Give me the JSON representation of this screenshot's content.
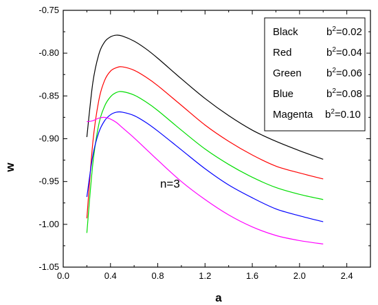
{
  "chart_data": {
    "type": "line",
    "xlabel": "a",
    "ylabel": "w",
    "xlim": [
      0.0,
      2.6
    ],
    "ylim": [
      -1.05,
      -0.75
    ],
    "xticks": [
      0.0,
      0.4,
      0.8,
      1.2,
      1.6,
      2.0,
      2.4
    ],
    "xtick_labels": [
      "0.0",
      "0.4",
      "0.8",
      "1.2",
      "1.6",
      "2.0",
      "2.4"
    ],
    "yticks": [
      -1.05,
      -1.0,
      -0.95,
      -0.9,
      -0.85,
      -0.8,
      -0.75
    ],
    "ytick_labels": [
      "-1.05",
      "-1.00",
      "-0.95",
      "-0.90",
      "-0.85",
      "-0.80",
      "-0.75"
    ],
    "grid": false,
    "legend_position": "top-right",
    "annotation": {
      "text": "n=3",
      "x": 0.82,
      "y": -0.957
    },
    "series": [
      {
        "name": "Black",
        "param": "0.02",
        "color": "#000000",
        "x": [
          0.2,
          0.25,
          0.3,
          0.35,
          0.4,
          0.45,
          0.5,
          0.6,
          0.7,
          0.8,
          1.0,
          1.2,
          1.4,
          1.6,
          1.8,
          2.0,
          2.2
        ],
        "y": [
          -0.898,
          -0.835,
          -0.802,
          -0.787,
          -0.781,
          -0.779,
          -0.78,
          -0.786,
          -0.795,
          -0.806,
          -0.83,
          -0.853,
          -0.873,
          -0.89,
          -0.903,
          -0.914,
          -0.924
        ]
      },
      {
        "name": "Red",
        "param": "0.04",
        "color": "#ff0000",
        "x": [
          0.2,
          0.25,
          0.3,
          0.35,
          0.4,
          0.45,
          0.5,
          0.6,
          0.7,
          0.8,
          1.0,
          1.2,
          1.4,
          1.6,
          1.8,
          2.0,
          2.2
        ],
        "y": [
          -0.993,
          -0.905,
          -0.856,
          -0.832,
          -0.821,
          -0.817,
          -0.816,
          -0.82,
          -0.828,
          -0.838,
          -0.861,
          -0.884,
          -0.903,
          -0.919,
          -0.932,
          -0.94,
          -0.947
        ]
      },
      {
        "name": "Green",
        "param": "0.06",
        "color": "#00dd00",
        "x": [
          0.2,
          0.25,
          0.3,
          0.35,
          0.4,
          0.45,
          0.5,
          0.6,
          0.7,
          0.8,
          1.0,
          1.2,
          1.4,
          1.6,
          1.8,
          2.0,
          2.2
        ],
        "y": [
          -1.01,
          -0.93,
          -0.884,
          -0.862,
          -0.851,
          -0.846,
          -0.845,
          -0.849,
          -0.857,
          -0.867,
          -0.89,
          -0.912,
          -0.93,
          -0.945,
          -0.957,
          -0.965,
          -0.971
        ]
      },
      {
        "name": "Blue",
        "param": "0.08",
        "color": "#0000ff",
        "x": [
          0.2,
          0.25,
          0.3,
          0.35,
          0.4,
          0.45,
          0.5,
          0.6,
          0.7,
          0.8,
          1.0,
          1.2,
          1.4,
          1.6,
          1.8,
          2.0,
          2.2
        ],
        "y": [
          -0.968,
          -0.92,
          -0.893,
          -0.879,
          -0.872,
          -0.869,
          -0.869,
          -0.873,
          -0.881,
          -0.891,
          -0.913,
          -0.935,
          -0.954,
          -0.969,
          -0.982,
          -0.99,
          -0.997
        ]
      },
      {
        "name": "Magenta",
        "param": "0.10",
        "color": "#ff00ff",
        "x": [
          0.2,
          0.25,
          0.3,
          0.35,
          0.4,
          0.45,
          0.5,
          0.6,
          0.7,
          0.8,
          1.0,
          1.2,
          1.4,
          1.6,
          1.8,
          2.0,
          2.2
        ],
        "y": [
          -0.88,
          -0.879,
          -0.876,
          -0.875,
          -0.877,
          -0.881,
          -0.887,
          -0.899,
          -0.912,
          -0.925,
          -0.95,
          -0.971,
          -0.989,
          -1.003,
          -1.013,
          -1.019,
          -1.023
        ]
      }
    ]
  }
}
